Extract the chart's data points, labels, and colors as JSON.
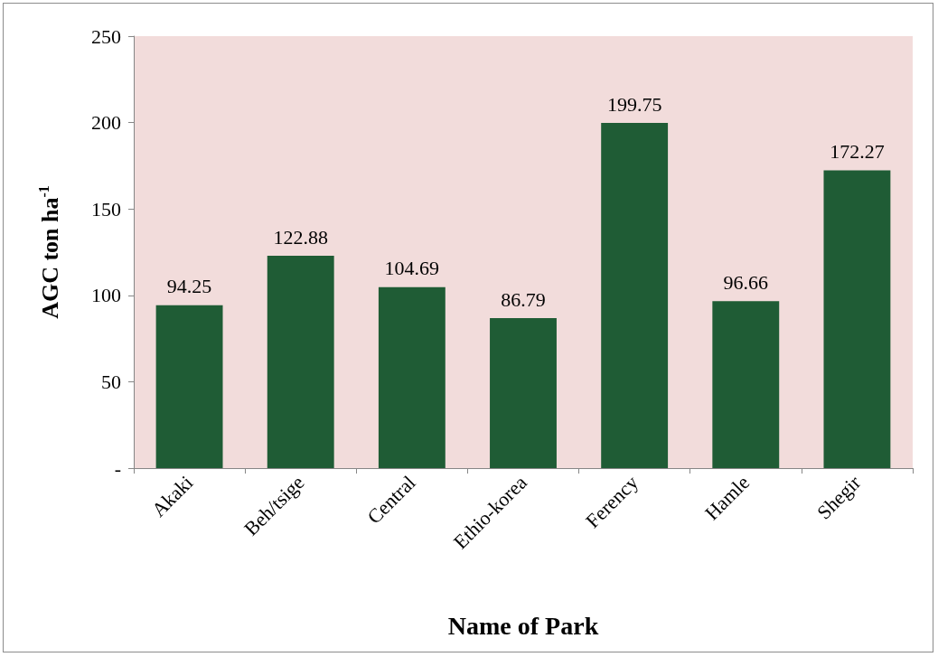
{
  "chart_data": {
    "type": "bar",
    "xlabel": "Name of Park",
    "ylabel": "AGC ton ha$^{-1}$",
    "categories": [
      "Akaki",
      "Beh/tsige",
      "Central",
      "Ethio-korea",
      "Ferency",
      "Hamle",
      "Shegir"
    ],
    "values": [
      94.25,
      122.88,
      104.69,
      86.79,
      199.75,
      96.66,
      172.27
    ],
    "color": "#1f5c35",
    "ylim": [
      0,
      250
    ],
    "yticks": [
      {
        "value": 0,
        "label": "-"
      },
      50,
      100,
      150,
      200,
      250
    ],
    "data_labels": true,
    "grid": false
  }
}
